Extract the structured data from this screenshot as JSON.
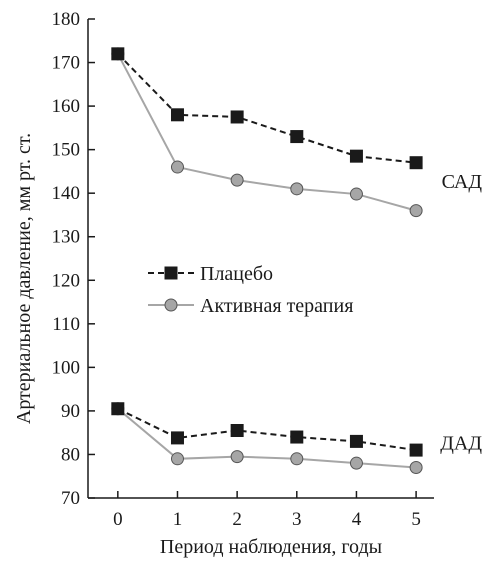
{
  "chart_data": {
    "type": "line",
    "xlabel": "Период наблюдения, годы",
    "ylabel": "Артериальное давление, мм рт. ст.",
    "x": [
      0,
      1,
      2,
      3,
      4,
      5
    ],
    "xticks": [
      "0",
      "1",
      "2",
      "3",
      "4",
      "5"
    ],
    "xlim": [
      -0.5,
      5.3
    ],
    "yticks": [
      "70",
      "80",
      "90",
      "100",
      "110",
      "120",
      "130",
      "140",
      "150",
      "160",
      "170",
      "180"
    ],
    "ylim": [
      70,
      180
    ],
    "grid": false,
    "legend_position": "center-left",
    "legend": [
      {
        "label": "Плацебо",
        "color": "#1a1a1a",
        "marker": "square",
        "line": "dashed"
      },
      {
        "label": "Активная терапия",
        "color": "#a6a6a6",
        "marker": "circle",
        "line": "solid"
      }
    ],
    "group_labels": [
      {
        "text": "САД",
        "near_y": 140
      },
      {
        "text": "ДАД",
        "near_y": 80
      }
    ],
    "series": [
      {
        "name": "Плацебо",
        "group": "САД",
        "values": [
          172,
          158,
          157.5,
          153,
          148.5,
          147
        ]
      },
      {
        "name": "Активная терапия",
        "group": "САД",
        "values": [
          172,
          146,
          143,
          141,
          139.8,
          136
        ]
      },
      {
        "name": "Плацебо",
        "group": "ДАД",
        "values": [
          90.5,
          83.8,
          85.5,
          84,
          83,
          81
        ]
      },
      {
        "name": "Активная терапия",
        "group": "ДАД",
        "values": [
          90.5,
          79,
          79.5,
          79,
          78,
          77
        ]
      }
    ]
  }
}
